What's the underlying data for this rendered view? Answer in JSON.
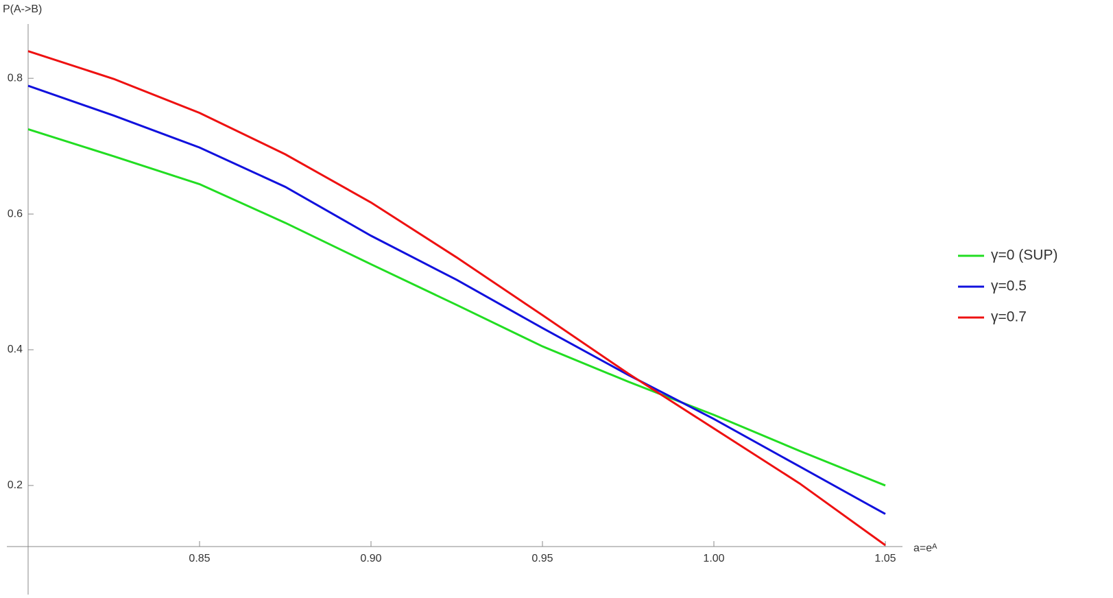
{
  "chart_data": {
    "type": "line",
    "ylabel": "P(A->B)",
    "xlabel": "a=eᴬ",
    "x": [
      0.8,
      0.825,
      0.85,
      0.875,
      0.9,
      0.925,
      0.95,
      0.975,
      1.0,
      1.025,
      1.05
    ],
    "series": [
      {
        "name": "γ=0 (SUP)",
        "color": "#22dd22",
        "values": [
          0.725,
          0.685,
          0.644,
          0.587,
          0.526,
          0.466,
          0.405,
          0.353,
          0.304,
          0.251,
          0.2
        ]
      },
      {
        "name": "γ=0.5",
        "color": "#1111dd",
        "values": [
          0.789,
          0.745,
          0.698,
          0.64,
          0.568,
          0.503,
          0.432,
          0.363,
          0.298,
          0.228,
          0.158
        ]
      },
      {
        "name": "γ=0.7",
        "color": "#ee1111",
        "values": [
          0.84,
          0.799,
          0.749,
          0.688,
          0.617,
          0.536,
          0.451,
          0.365,
          0.284,
          0.203,
          0.112
        ]
      }
    ],
    "xlim": [
      0.8,
      1.055
    ],
    "ylim": [
      0.11,
      0.88
    ],
    "xticks": [
      0.85,
      {
        "value": 0.9,
        "label": "0.90"
      },
      0.95,
      {
        "value": 1.0,
        "label": "1.00"
      },
      1.05
    ],
    "yticks": [
      0.2,
      0.4,
      0.6,
      0.8
    ],
    "legend": "right"
  }
}
